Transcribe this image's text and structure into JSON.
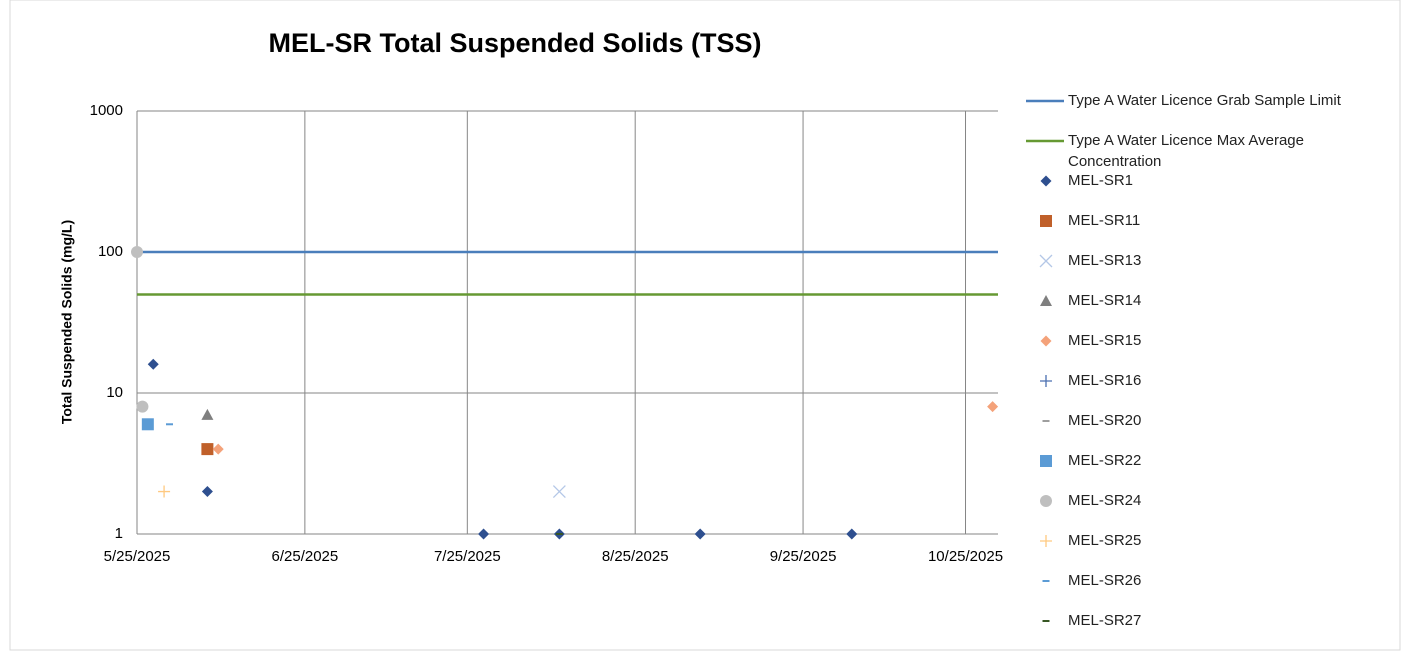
{
  "chart_data": {
    "type": "scatter",
    "title": "MEL-SR Total Suspended Solids (TSS)",
    "y_label": "Total Suspended Solids (mg/L)",
    "log_y": true,
    "grid": true,
    "legend": "right",
    "xlim": [
      "2025-05-25",
      "2025-10-31"
    ],
    "xticks": [
      {
        "value": "2025-05-25",
        "label": "5/25/2025"
      },
      {
        "value": "2025-06-25",
        "label": "6/25/2025"
      },
      {
        "value": "2025-07-25",
        "label": "7/25/2025"
      },
      {
        "value": "2025-08-25",
        "label": "8/25/2025"
      },
      {
        "value": "2025-09-25",
        "label": "9/25/2025"
      },
      {
        "value": "2025-10-25",
        "label": "10/25/2025"
      }
    ],
    "ylim": [
      1,
      1000
    ],
    "yticks": [
      1,
      10,
      100,
      1000
    ],
    "series": [
      {
        "name": "Type A Water Licence Grab Sample Limit",
        "color": "#4a7ebb",
        "marker": "line",
        "x": [
          "2025-05-25",
          "2025-10-31"
        ],
        "values": [
          100,
          100
        ]
      },
      {
        "name": "Type A Water Licence Max Average Concentration",
        "color": "#669933",
        "marker": "line",
        "x": [
          "2025-05-25",
          "2025-10-31"
        ],
        "values": [
          50,
          50
        ]
      },
      {
        "name": "MEL-SR1",
        "color": "#2e4f8f",
        "marker": "diamond",
        "x": [
          "2025-05-28",
          "2025-06-07",
          "2025-07-28",
          "2025-08-11",
          "2025-09-06",
          "2025-10-04"
        ],
        "values": [
          16,
          2,
          1,
          1,
          1,
          1
        ]
      },
      {
        "name": "MEL-SR11",
        "color": "#c0602a",
        "marker": "square",
        "x": [
          "2025-06-07"
        ],
        "values": [
          4
        ]
      },
      {
        "name": "MEL-SR13",
        "color": "#b4c7e7",
        "marker": "x",
        "x": [
          "2025-08-11"
        ],
        "values": [
          2
        ]
      },
      {
        "name": "MEL-SR14",
        "color": "#7f7f7f",
        "marker": "triangle",
        "x": [
          "2025-06-07"
        ],
        "values": [
          7
        ]
      },
      {
        "name": "MEL-SR15",
        "color": "#f4a27a",
        "marker": "diamond",
        "x": [
          "2025-06-09",
          "2025-10-30"
        ],
        "values": [
          4,
          8
        ]
      },
      {
        "name": "MEL-SR16",
        "color": "#4a6fb0",
        "marker": "plus",
        "x": [],
        "values": []
      },
      {
        "name": "MEL-SR20",
        "color": "#9e9e9e",
        "marker": "dash",
        "x": [],
        "values": []
      },
      {
        "name": "MEL-SR22",
        "color": "#5b9bd5",
        "marker": "square",
        "x": [
          "2025-05-27"
        ],
        "values": [
          6
        ]
      },
      {
        "name": "MEL-SR24",
        "color": "#bfbfbf",
        "marker": "circle",
        "x": [
          "2025-05-25",
          "2025-05-26"
        ],
        "values": [
          100,
          8
        ]
      },
      {
        "name": "MEL-SR25",
        "color": "#ffc980",
        "marker": "plus",
        "x": [
          "2025-05-30"
        ],
        "values": [
          2
        ]
      },
      {
        "name": "MEL-SR26",
        "color": "#5b9bd5",
        "marker": "dash",
        "x": [
          "2025-05-31"
        ],
        "values": [
          6
        ]
      },
      {
        "name": "MEL-SR27",
        "color": "#375623",
        "marker": "dash",
        "x": [
          "2025-08-11"
        ],
        "values": [
          1
        ]
      }
    ]
  }
}
